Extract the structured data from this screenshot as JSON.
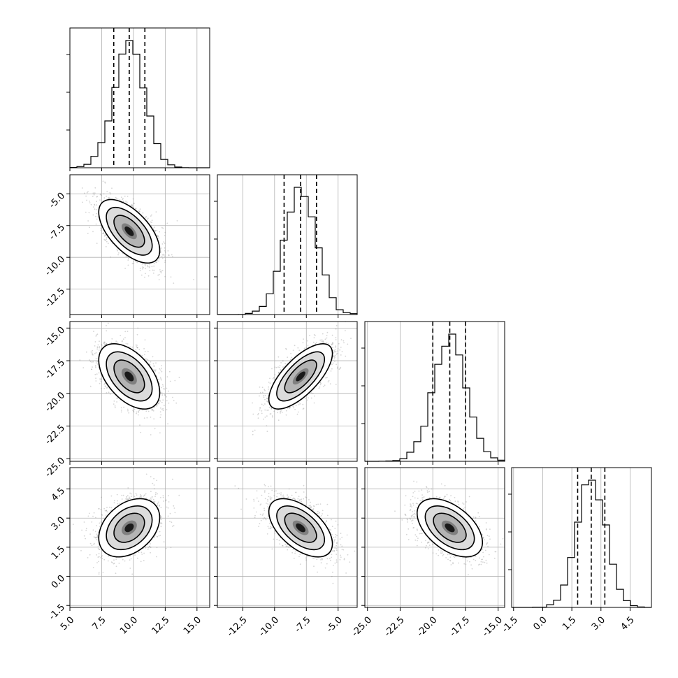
{
  "chart_data": {
    "type": "corner",
    "grid": true,
    "parameters": [
      {
        "index": 0,
        "range": [
          5.0,
          16.0
        ],
        "ticks": [
          5.0,
          7.5,
          10.0,
          12.5,
          15.0
        ],
        "tick_labels": [
          "5.0",
          "7.5",
          "10.0",
          "12.5",
          "15.0"
        ],
        "mean": 9.67,
        "sd": 1.2,
        "quantiles": [
          8.45,
          9.67,
          10.9
        ]
      },
      {
        "index": 1,
        "range": [
          -14.5,
          -3.5
        ],
        "ticks": [
          -12.5,
          -10.0,
          -7.5,
          -5.0
        ],
        "tick_labels": [
          "-12.5",
          "-10.0",
          "-7.5",
          "-5.0"
        ],
        "mean": -7.95,
        "sd": 1.25,
        "quantiles": [
          -9.25,
          -7.95,
          -6.7
        ]
      },
      {
        "index": 2,
        "range": [
          -25.2,
          -14.5
        ],
        "ticks": [
          -25.0,
          -22.5,
          -20.0,
          -17.5,
          -15.0
        ],
        "tick_labels": [
          "-25.0",
          "-22.5",
          "-20.0",
          "-17.5",
          "-15.0"
        ],
        "mean": -18.7,
        "sd": 1.25,
        "quantiles": [
          -20.0,
          -18.7,
          -17.5
        ]
      },
      {
        "index": 3,
        "range": [
          -1.6,
          5.6
        ],
        "ticks": [
          -1.5,
          0.0,
          1.5,
          3.0,
          4.5
        ],
        "tick_labels": [
          "-1.5",
          "0.0",
          "1.5",
          "3.0",
          "4.5"
        ],
        "mean": 2.5,
        "sd": 0.75,
        "quantiles": [
          1.8,
          2.5,
          3.2
        ]
      }
    ],
    "correlations": {
      "0-1": -0.6,
      "0-2": -0.5,
      "1-2": 0.7,
      "0-3": 0.35,
      "1-3": -0.55,
      "2-3": -0.5
    },
    "contour_levels_sigma": [
      0.5,
      1.0,
      1.5,
      2.0
    ]
  }
}
